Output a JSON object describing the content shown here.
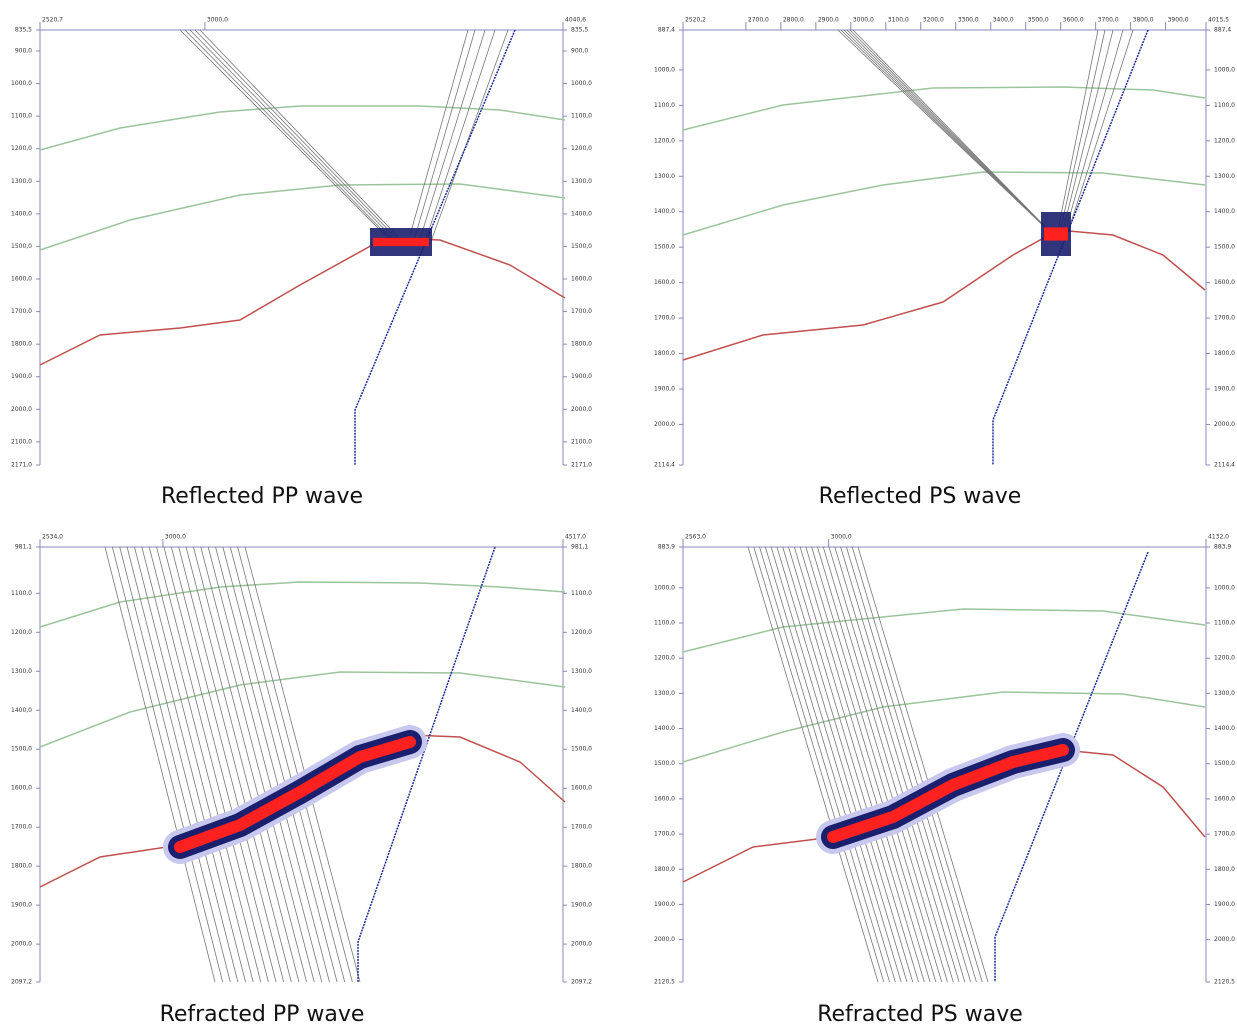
{
  "panels": [
    {
      "caption": "Reflected PP wave",
      "top_ticks": [
        "2520,7",
        "3000,0",
        "4040,6"
      ],
      "side_ticks": [
        "835,5",
        "900,0",
        "1000,0",
        "1100,0",
        "1200,0",
        "1300,0",
        "1400,0",
        "1500,0",
        "1600,0",
        "1700,0",
        "1800,0",
        "1900,0",
        "2000,0",
        "2100,0",
        "2171,0"
      ]
    },
    {
      "caption": "Reflected PS wave",
      "top_ticks": [
        "2520,2",
        "2700,0",
        "2800,0",
        "2900,0",
        "3000,0",
        "3100,0",
        "3200,0",
        "3300,0",
        "3400,0",
        "3500,0",
        "3600,0",
        "3700,0",
        "3800,0",
        "3900,0",
        "4015,5"
      ],
      "side_ticks": [
        "887,4",
        "1000,0",
        "1100,0",
        "1200,0",
        "1300,0",
        "1400,0",
        "1500,0",
        "1600,0",
        "1700,0",
        "1800,0",
        "1900,0",
        "2000,0",
        "2114,4"
      ]
    },
    {
      "caption": "Refracted PP wave",
      "top_ticks": [
        "2534,0",
        "3000,0",
        "4517,0"
      ],
      "side_ticks": [
        "981,1",
        "1100,0",
        "1200,0",
        "1300,0",
        "1400,0",
        "1500,0",
        "1600,0",
        "1700,0",
        "1800,0",
        "1900,0",
        "2000,0",
        "2097,2"
      ]
    },
    {
      "caption": "Refracted PS wave",
      "top_ticks": [
        "2563,0",
        "3000,0",
        "4132,0"
      ],
      "side_ticks": [
        "883,9",
        "1000,0",
        "1100,0",
        "1200,0",
        "1300,0",
        "1400,0",
        "1500,0",
        "1600,0",
        "1700,0",
        "1800,0",
        "1900,0",
        "2000,0",
        "2120,5"
      ]
    }
  ]
}
